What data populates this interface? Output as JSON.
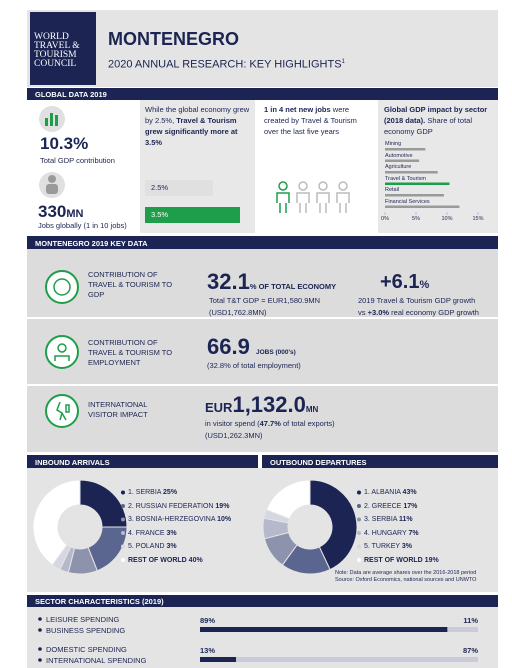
{
  "header": {
    "logo_lines": [
      "WORLD",
      "TRAVEL &",
      "TOURISM",
      "COUNCIL"
    ],
    "title": "MONTENEGRO",
    "subtitle": "2020 ANNUAL RESEARCH: KEY HIGHLIGHTS",
    "subtitle_note": "1"
  },
  "global": {
    "title": "GLOBAL DATA 2019",
    "gdp_share": "10.3%",
    "gdp_share_label": "Total GDP contribution",
    "jobs_value": "330",
    "jobs_unit": "MN",
    "jobs_label": "Jobs globally (1 in 10 jobs)",
    "growth_text": "While the global economy grew by 2.5%,",
    "growth_bold": "Travel & Tourism grew significantly more at 3.5%",
    "growth_bars": {
      "xlim": [
        0,
        3.5
      ],
      "bars": [
        {
          "value": 2.5,
          "value_label": "2.5%",
          "color": "#e0e0e0"
        },
        {
          "value": 3.5,
          "value_label": "3.5%",
          "color": "#1e9e4a"
        }
      ]
    },
    "jobs_bold": "1 in 4 net new jobs",
    "jobs_text": "were created by Travel & Tourism over the last five years",
    "sector_chart": {
      "title_bold": "Global GDP impact by sector (2018 data).",
      "title_rest": "Share of total economy GDP",
      "categories": [
        "Mining",
        "Automotive",
        "Agriculture",
        "Travel & Tourism",
        "Retail",
        "Financial Services"
      ],
      "values": [
        6.5,
        5.5,
        8.5,
        10.4,
        9.5,
        12
      ],
      "colors": [
        "#9a9a9a",
        "#9a9a9a",
        "#9a9a9a",
        "#1e9e4a",
        "#9a9a9a",
        "#9a9a9a"
      ],
      "xlim": [
        0,
        15
      ],
      "xticks": [
        {
          "value": 0,
          "label": "0%"
        },
        {
          "value": 5,
          "label": "5%"
        },
        {
          "value": 10,
          "label": "10%"
        },
        {
          "value": 15,
          "label": "15%"
        }
      ]
    }
  },
  "key_data": {
    "title": "MONTENEGRO 2019 KEY DATA",
    "gdp": {
      "label": "CONTRIBUTION OF TRAVEL & TOURISM TO GDP",
      "value": "32.1",
      "unit": "% OF TOTAL ECONOMY",
      "detail1": "Total T&T GDP = EUR1,580.9MN",
      "detail2": "(USD1,762.8MN)",
      "growth": "+6.1",
      "growth_unit": "%",
      "growth_text1": "2019 Travel & Tourism GDP growth",
      "growth_text2_pre": "vs ",
      "growth_text2_bold": "+3.0%",
      "growth_text2_post": " real economy GDP growth"
    },
    "employment": {
      "label": "CONTRIBUTION OF TRAVEL & TOURISM TO EMPLOYMENT",
      "value": "66.9",
      "unit": "JOBS (000's)",
      "detail1": "(32.8% of total employment)"
    },
    "visitor": {
      "label": "INTERNATIONAL VISITOR IMPACT",
      "currency": "EUR",
      "value": "1,132.0",
      "unit": "MN",
      "detail1_pre": "in visitor spend (",
      "detail1_bold": "47.7%",
      "detail1_post": " of total exports)",
      "detail2": "(USD1,262.3MN)"
    }
  },
  "inbound": {
    "title": "INBOUND ARRIVALS",
    "items": [
      {
        "name": "1. SERBIA",
        "value": 25,
        "value_label": "25%",
        "color": "#1b2452"
      },
      {
        "name": "2. RUSSIAN FEDERATION",
        "value": 19,
        "value_label": "19%",
        "color": "#5b6690"
      },
      {
        "name": "3. BOSNIA-HERZEGOVINA",
        "value": 10,
        "value_label": "10%",
        "color": "#8d93ad"
      },
      {
        "name": "4. FRANCE",
        "value": 3,
        "value_label": "3%",
        "color": "#b5b9cb"
      },
      {
        "name": "5. POLAND",
        "value": 3,
        "value_label": "3%",
        "color": "#d5d7e2"
      },
      {
        "name": "REST OF WORLD",
        "value": 40,
        "value_label": "40%",
        "color": "#ffffff"
      }
    ]
  },
  "outbound": {
    "title": "OUTBOUND DEPARTURES",
    "items": [
      {
        "name": "1. ALBANIA",
        "value": 43,
        "value_label": "43%",
        "color": "#1b2452"
      },
      {
        "name": "2. GREECE",
        "value": 17,
        "value_label": "17%",
        "color": "#5b6690"
      },
      {
        "name": "3. SERBIA",
        "value": 11,
        "value_label": "11%",
        "color": "#8d93ad"
      },
      {
        "name": "4. HUNGARY",
        "value": 7,
        "value_label": "7%",
        "color": "#b5b9cb"
      },
      {
        "name": "5. TURKEY",
        "value": 3,
        "value_label": "3%",
        "color": "#d5d7e2"
      },
      {
        "name": "REST OF WORLD",
        "value": 19,
        "value_label": "19%",
        "color": "#ffffff"
      }
    ]
  },
  "note": "Note: Data are average shares over the 2016-2018 period",
  "source": "Source: Oxford Economics, national sources and UNWTO",
  "sector": {
    "title": "SECTOR CHARACTERISTICS (2019)",
    "xlim": [
      0,
      100
    ],
    "pairs": [
      {
        "items": [
          {
            "name": "LEISURE SPENDING",
            "value": 89,
            "value_label": "89%",
            "color": "#1b2452"
          },
          {
            "name": "BUSINESS SPENDING",
            "value": 11,
            "value_label": "11%",
            "color": "#c9ccd8"
          }
        ]
      },
      {
        "items": [
          {
            "name": "DOMESTIC SPENDING",
            "value": 13,
            "value_label": "13%",
            "color": "#1b2452"
          },
          {
            "name": "INTERNATIONAL SPENDING",
            "value": 87,
            "value_label": "87%",
            "color": "#c9ccd8"
          }
        ]
      }
    ]
  }
}
